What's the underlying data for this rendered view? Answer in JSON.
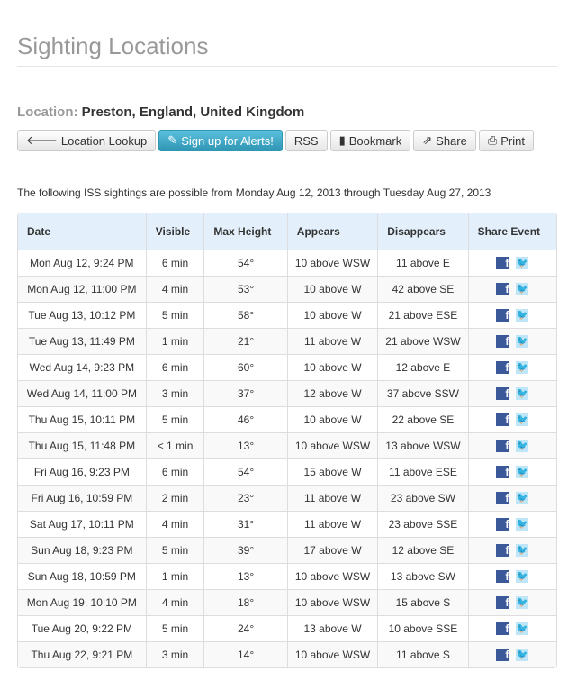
{
  "title": "Sighting Locations",
  "location": {
    "label": "Location:",
    "value": "Preston, England, United Kingdom"
  },
  "buttons": [
    {
      "label": "Location Lookup",
      "icon": "arrow-left-icon"
    },
    {
      "label": "Sign up for Alerts!",
      "icon": "pencil-icon"
    },
    {
      "label": "RSS",
      "icon": ""
    },
    {
      "label": "Bookmark",
      "icon": "bookmark-icon"
    },
    {
      "label": "Share",
      "icon": "share-icon"
    },
    {
      "label": "Print",
      "icon": "print-icon"
    }
  ],
  "intro": "The following ISS sightings are possible from Monday Aug 12, 2013 through Tuesday Aug 27, 2013",
  "table": {
    "headers": [
      "Date",
      "Visible",
      "Max Height",
      "Appears",
      "Disappears",
      "Share Event"
    ],
    "rows": [
      [
        "Mon Aug 12, 9:24 PM",
        "6 min",
        "54°",
        "10 above WSW",
        "11 above E"
      ],
      [
        "Mon Aug 12, 11:00 PM",
        "4 min",
        "53°",
        "10 above W",
        "42 above SE"
      ],
      [
        "Tue Aug 13, 10:12 PM",
        "5 min",
        "58°",
        "10 above W",
        "21 above ESE"
      ],
      [
        "Tue Aug 13, 11:49 PM",
        "1 min",
        "21°",
        "11 above W",
        "21 above WSW"
      ],
      [
        "Wed Aug 14, 9:23 PM",
        "6 min",
        "60°",
        "10 above W",
        "12 above E"
      ],
      [
        "Wed Aug 14, 11:00 PM",
        "3 min",
        "37°",
        "12 above W",
        "37 above SSW"
      ],
      [
        "Thu Aug 15, 10:11 PM",
        "5 min",
        "46°",
        "10 above W",
        "22 above SE"
      ],
      [
        "Thu Aug 15, 11:48 PM",
        "< 1 min",
        "13°",
        "10 above WSW",
        "13 above WSW"
      ],
      [
        "Fri Aug 16, 9:23 PM",
        "6 min",
        "54°",
        "15 above W",
        "11 above ESE"
      ],
      [
        "Fri Aug 16, 10:59 PM",
        "2 min",
        "23°",
        "11 above W",
        "23 above SW"
      ],
      [
        "Sat Aug 17, 10:11 PM",
        "4 min",
        "31°",
        "11 above W",
        "23 above SSE"
      ],
      [
        "Sun Aug 18, 9:23 PM",
        "5 min",
        "39°",
        "17 above W",
        "12 above SE"
      ],
      [
        "Sun Aug 18, 10:59 PM",
        "1 min",
        "13°",
        "10 above WSW",
        "13 above SW"
      ],
      [
        "Mon Aug 19, 10:10 PM",
        "4 min",
        "18°",
        "10 above WSW",
        "15 above S"
      ],
      [
        "Tue Aug 20, 9:22 PM",
        "5 min",
        "24°",
        "13 above W",
        "10 above SSE"
      ],
      [
        "Thu Aug 22, 9:21 PM",
        "3 min",
        "14°",
        "10 above WSW",
        "11 above S"
      ]
    ]
  },
  "colors": {
    "accent": "#49afcd",
    "header_bg": "#e3f0fc",
    "facebook": "#3b5998",
    "twitter": "#1da1f2"
  }
}
